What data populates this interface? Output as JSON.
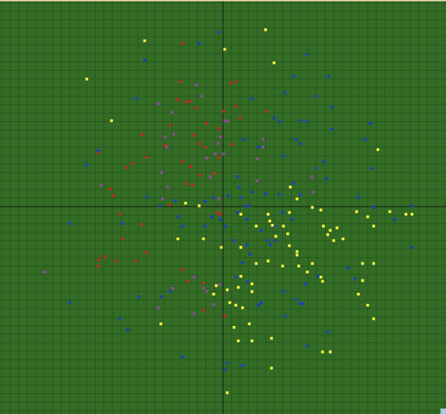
{
  "chart_data": {
    "type": "scatter",
    "xlim": [
      -26.2,
      26.2
    ],
    "ylim": [
      -24.4,
      24.3
    ],
    "grid": true,
    "xticks": [
      -26,
      -25,
      -24,
      -23,
      -22,
      -21,
      -20,
      -19,
      -18,
      -17,
      -16,
      -15,
      -14,
      -13,
      -12,
      -11,
      -10,
      -9,
      -8,
      -7,
      -6,
      -5,
      -4,
      -3,
      -2,
      -1,
      0,
      1,
      2,
      3,
      4,
      5,
      6,
      7,
      8,
      9,
      10,
      11,
      12,
      13,
      14,
      15,
      16,
      17,
      18,
      19,
      20,
      21,
      22,
      23,
      24,
      25,
      26
    ],
    "yticks": [
      -24,
      -23,
      -22,
      -21,
      -20,
      -19,
      -18,
      -17,
      -16,
      -15,
      -14,
      -13,
      -12,
      -11,
      -10,
      -9,
      -8,
      -7,
      -6,
      -5,
      -4,
      -3,
      -2,
      -1,
      0,
      1,
      2,
      3,
      4,
      5,
      6,
      7,
      8,
      9,
      10,
      11,
      12,
      13,
      14,
      15,
      16,
      17,
      18,
      19,
      20,
      21,
      22,
      23,
      24
    ],
    "series": [
      {
        "color": "#c8281c",
        "x": [
          -4.8,
          -5.0,
          -4.3,
          -5.3,
          -3.1,
          -3.8,
          0.1,
          1.5,
          0.9,
          1.5,
          5.1,
          2.0,
          -0.5,
          -9.5,
          -6.2,
          -6.8,
          -2.8,
          -2.1,
          1.0,
          -8.9,
          -10.6,
          -11.3,
          -4.8,
          -3.8,
          -4.4,
          -2.8,
          -1.0,
          -0.5,
          -14.7,
          -13.3,
          -12.9,
          -12.1,
          -9.6,
          -11.8,
          -9.0,
          -10.2,
          -13.8,
          -14.5,
          -12.5,
          -14.7,
          -4.8,
          -4.1,
          -2.3,
          -2.3,
          0.2,
          -0.7,
          -0.3,
          -6.3,
          -3.6,
          -1.9,
          -3.4
        ],
        "values": [
          19.2,
          14.7,
          12.3,
          12.6,
          11.6,
          12.4,
          11.2,
          11.8,
          14.5,
          14.7,
          11.2,
          10.4,
          9.2,
          8.5,
          9.6,
          7.2,
          7.4,
          7.0,
          7.3,
          5.8,
          5.1,
          4.6,
          5.3,
          4.7,
          2.7,
          3.7,
          3.9,
          5.8,
          6.4,
          2.1,
          1.3,
          -0.9,
          -2.1,
          -3.8,
          -5.4,
          -6.4,
          -5.9,
          -6.2,
          -6.4,
          -7.0,
          -7.4,
          -8.8,
          -9.0,
          -12.2,
          -12.9,
          -0.7,
          -0.9,
          0.2,
          2.5,
          9.8,
          8.4
        ]
      },
      {
        "color": "#8c4c9c",
        "x": [
          -3.1,
          -2.5,
          -6.0,
          -7.6,
          -6.8,
          -5.8,
          -6.6,
          -0.3,
          -0.6,
          0.6,
          0.2,
          4.7,
          4.7,
          4.0,
          -0.9,
          0.1,
          -1.9,
          -1.5,
          -7.2,
          -6.5,
          -14.3,
          4.0,
          10.4,
          10.6,
          -7.1,
          -20.9,
          -3.4,
          -2.3,
          -1.9,
          -5.9,
          -7.6,
          -3.4,
          -1.1,
          -0.4,
          -0.5
        ],
        "values": [
          14.3,
          13.0,
          11.1,
          12.1,
          8.2,
          8.5,
          7.0,
          8.2,
          7.4,
          10.0,
          10.1,
          7.9,
          7.0,
          5.6,
          6.2,
          6.2,
          5.7,
          3.5,
          4.0,
          2.3,
          2.5,
          3.0,
          3.5,
          1.7,
          0.9,
          -7.7,
          -8.3,
          -9.6,
          -10.0,
          -9.6,
          -11.9,
          -12.6,
          -11.5,
          -9.2,
          0.9
        ]
      },
      {
        "color": "#1444c4",
        "x": [
          -0.5,
          -2.8,
          -9.2,
          9.9,
          8.3,
          12.4,
          7.3,
          10.9,
          12.8,
          3.4,
          6.0,
          6.6,
          9.1,
          9.9,
          12.8,
          17.3,
          16.7,
          8.6,
          9.1,
          2.4,
          4.2,
          7.1,
          11.8,
          12.2,
          10.9,
          17.5,
          -16.0,
          -14.7,
          -10.2,
          -8.9,
          -7.4,
          -5.6,
          -2.1,
          -1.1,
          1.7,
          2.1,
          2.6,
          3.1,
          0.6,
          1.9,
          3.4,
          5.0,
          6.6,
          8.3,
          9.1,
          7.0,
          8.1,
          6.0,
          4.5,
          2.8,
          1.7,
          0.3,
          -2.1,
          -0.3,
          -1.3,
          -4.7,
          -5.3,
          -11.8,
          -18.0,
          5.3,
          5.5,
          6.2,
          3.2,
          2.8,
          1.3,
          2.3,
          1.5,
          2.9,
          4.5,
          4.2,
          7.1,
          8.6,
          9.1,
          9.4,
          9.7,
          11.2,
          15.5,
          14.7,
          12.3,
          9.9,
          7.3,
          15.9,
          17.7,
          20.2,
          22.2,
          22.2,
          -18.0,
          -12.1,
          -11.2,
          -9.9,
          -7.3,
          -6.2,
          -4.7,
          0.5,
          2.3,
          0.2
        ],
        "values": [
          20.5,
          19.2,
          17.2,
          17.9,
          15.3,
          15.3,
          13.4,
          13.0,
          11.7,
          12.7,
          10.4,
          10.0,
          10.1,
          10.0,
          9.1,
          9.8,
          7.9,
          7.9,
          7.4,
          7.9,
          7.0,
          5.9,
          5.3,
          3.3,
          4.5,
          4.5,
          4.9,
          6.6,
          12.7,
          1.1,
          0.1,
          0.7,
          0.6,
          1.1,
          3.5,
          1.1,
          0.1,
          0.1,
          1.3,
          2.3,
          1.7,
          1.5,
          1.4,
          2.7,
          1.4,
          -0.7,
          -1.5,
          -2.3,
          -2.8,
          -1.5,
          -0.7,
          -2.3,
          -2.3,
          -1.5,
          -1.2,
          -2.3,
          -1.2,
          -2.0,
          -2.0,
          -4.0,
          -4.5,
          -4.0,
          -5.6,
          -4.5,
          -4.0,
          -6.6,
          -8.3,
          -8.8,
          -11.3,
          -11.6,
          -10.0,
          -10.9,
          -11.4,
          -11.4,
          -9.1,
          -8.2,
          -8.5,
          -7.2,
          -14.7,
          -16.4,
          -12.9,
          1.1,
          -0.1,
          -1.5,
          0.1,
          -4.8,
          -11.3,
          -13.2,
          -14.5,
          -10.6,
          -10.6,
          -10.0,
          -17.7,
          -18.4,
          -18.7,
          -19.2
        ]
      },
      {
        "color": "#f4f43c",
        "x": [
          5.0,
          -9.2,
          0.2,
          6.0,
          -16.0,
          -13.1,
          18.2,
          7.9,
          8.7,
          10.5,
          11.5,
          -4.4,
          -2.8,
          2.1,
          5.3,
          5.8,
          7.1,
          7.8,
          11.8,
          12.6,
          13.4,
          15.7,
          17.0,
          17.7,
          19.6,
          21.5,
          22.2,
          13.0,
          14.1,
          12.3,
          5.5,
          3.9,
          7.6,
          7.8,
          8.7,
          8.7,
          6.2,
          -5.3,
          -2.3,
          -0.2,
          2.1,
          3.9,
          5.3,
          7.0,
          8.9,
          9.9,
          10.5,
          11.5,
          11.7,
          16.4,
          17.7,
          16.4,
          15.9,
          17.0,
          17.7,
          2.1,
          1.8,
          3.4,
          0.5,
          3.4,
          -1.1,
          -0.8,
          0.8,
          1.5,
          2.3,
          1.3,
          3.1,
          1.8,
          3.4,
          5.7,
          11.7,
          12.6,
          -7.3,
          5.7,
          0.5
        ],
        "values": [
          20.8,
          19.5,
          18.5,
          16.9,
          15.0,
          10.1,
          6.7,
          2.3,
          0.9,
          -0.1,
          -0.4,
          0.4,
          0.1,
          -0.9,
          -0.9,
          -2.2,
          -2.3,
          -0.7,
          -2.3,
          -2.8,
          -2.5,
          -0.6,
          -1.2,
          -2.3,
          -0.6,
          -0.9,
          -0.9,
          -4.0,
          -3.8,
          -3.3,
          -1.7,
          -2.3,
          -3.2,
          -4.6,
          -5.7,
          -5.3,
          -3.5,
          -3.8,
          -3.8,
          -4.8,
          -4.8,
          -6.7,
          -6.4,
          -7.0,
          -7.0,
          -7.7,
          -6.7,
          -8.3,
          -8.8,
          -6.7,
          -6.7,
          -8.7,
          -10.3,
          -11.6,
          -13.2,
          -8.2,
          -9.5,
          -9.1,
          -9.8,
          -10.0,
          -10.3,
          -9.3,
          -11.3,
          -11.6,
          -11.9,
          -14.2,
          -13.8,
          -15.8,
          -15.8,
          -15.5,
          -17.1,
          -17.1,
          -13.8,
          -19.0,
          -21.9
        ]
      }
    ]
  }
}
